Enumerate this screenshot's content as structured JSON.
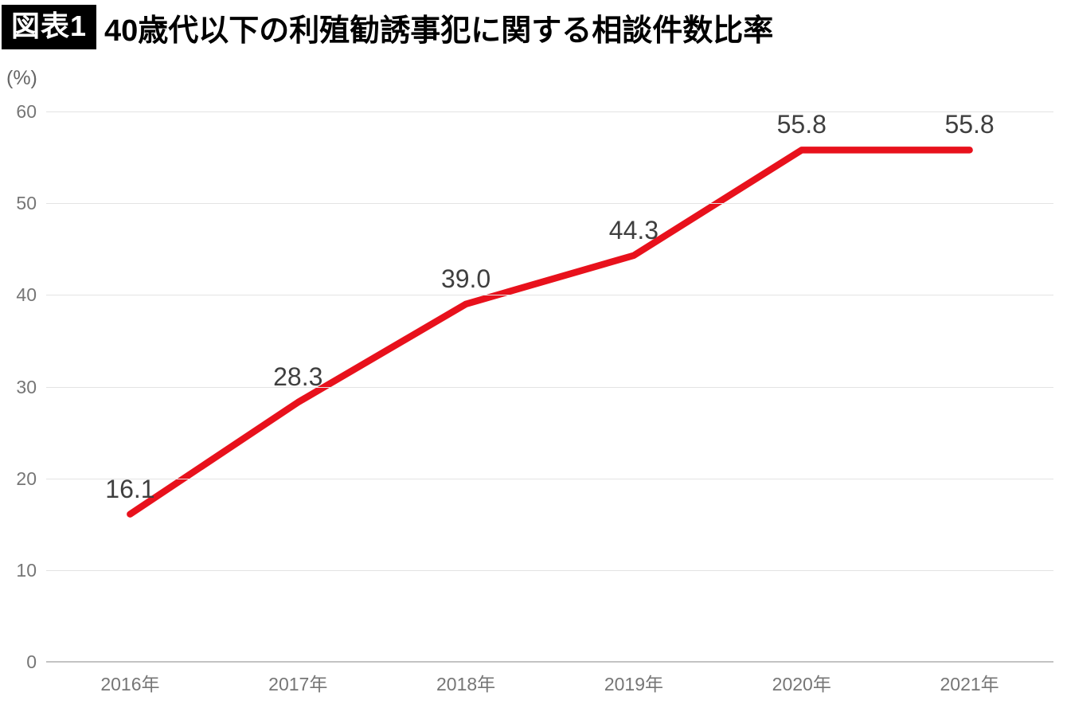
{
  "header": {
    "badge": "図表1",
    "title": "40歳代以下の利殖勧誘事犯に関する相談件数比率"
  },
  "chart_data": {
    "type": "line",
    "unit_label": "(%)",
    "categories": [
      "2016年",
      "2017年",
      "2018年",
      "2019年",
      "2020年",
      "2021年"
    ],
    "series": [
      {
        "name": "相談件数比率",
        "values": [
          16.1,
          28.3,
          39.0,
          44.3,
          55.8,
          55.8
        ],
        "data_labels": [
          "16.1",
          "28.3",
          "39.0",
          "44.3",
          "55.8",
          "55.8"
        ],
        "color": "#e8111c"
      }
    ],
    "title": "40歳代以下の利殖勧誘事犯に関する相談件数比率",
    "xlabel": "",
    "ylabel": "(%)",
    "ylim": [
      0,
      60
    ],
    "yticks": [
      0,
      10,
      20,
      30,
      40,
      50,
      60
    ],
    "grid": true,
    "legend_position": "none",
    "colors": {
      "line": "#e8111c",
      "data_label": "#3f3f3f",
      "axis_label": "#767676",
      "gridline": "#e3e3e3",
      "baseline": "#c3c3c3",
      "badge_bg": "#000000",
      "badge_text": "#ffffff"
    }
  }
}
